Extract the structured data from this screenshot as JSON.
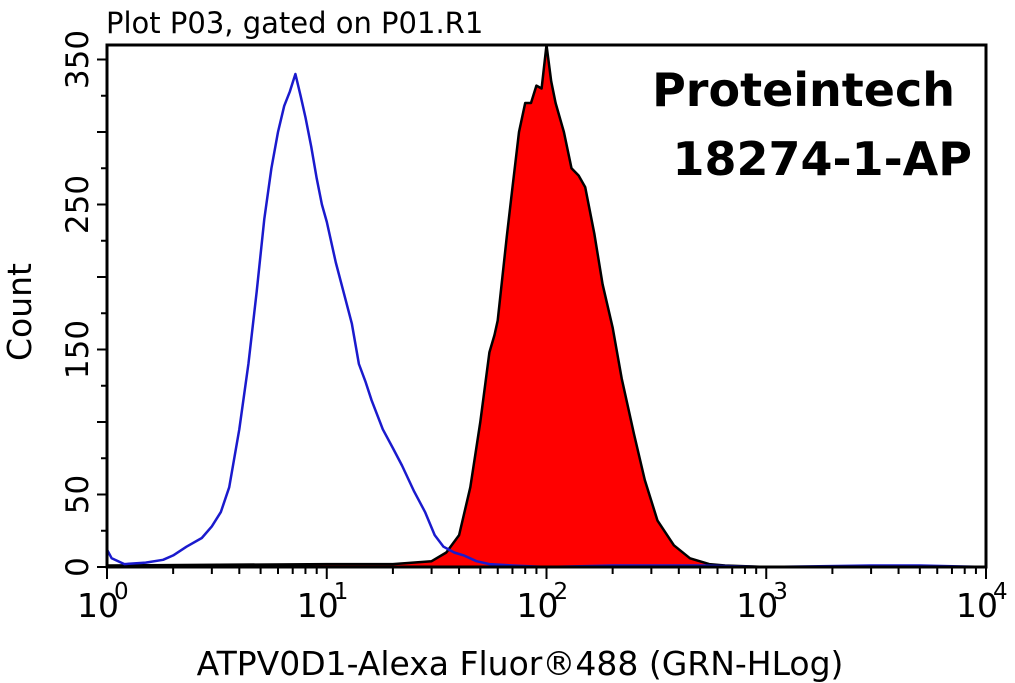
{
  "chart_data": {
    "type": "area",
    "title": "Plot P03, gated on P01.R1",
    "watermark": [
      "Proteintech",
      "18274-1-AP"
    ],
    "xlabel": "ATPV0D1-Alexa Fluor®488 (GRN-HLog)",
    "ylabel": "Count",
    "x_scale": "log",
    "xlim": [
      1,
      10000
    ],
    "ylim": [
      0,
      360
    ],
    "x_ticks": [
      {
        "base": "10",
        "exp": "0",
        "value": 1
      },
      {
        "base": "10",
        "exp": "1",
        "value": 10
      },
      {
        "base": "10",
        "exp": "2",
        "value": 100
      },
      {
        "base": "10",
        "exp": "3",
        "value": 1000
      },
      {
        "base": "10",
        "exp": "4",
        "value": 10000
      }
    ],
    "y_ticks": [
      "0",
      "50",
      "150",
      "250",
      "350"
    ],
    "y_tick_values": [
      0,
      50,
      150,
      250,
      350
    ],
    "grid": false,
    "legend": "none",
    "series": [
      {
        "style": "outline",
        "color": "#1a1acd",
        "x": [
          1,
          1.05,
          1.2,
          1.5,
          1.8,
          2.0,
          2.3,
          2.7,
          3.0,
          3.3,
          3.6,
          4.0,
          4.4,
          4.8,
          5.2,
          5.6,
          6.0,
          6.4,
          6.8,
          7.2,
          7.6,
          8.0,
          8.5,
          9.0,
          9.5,
          10,
          11,
          12,
          13,
          14,
          15,
          16,
          18,
          20,
          22,
          25,
          28,
          31,
          34,
          38,
          42,
          48,
          55,
          70,
          100,
          200,
          500,
          1000,
          3000,
          5000,
          10000
        ],
        "y": [
          12,
          6,
          2,
          3,
          5,
          8,
          14,
          20,
          28,
          38,
          55,
          95,
          140,
          190,
          240,
          275,
          300,
          318,
          328,
          340,
          325,
          310,
          290,
          268,
          250,
          238,
          210,
          188,
          168,
          140,
          128,
          115,
          95,
          82,
          70,
          52,
          38,
          22,
          14,
          10,
          8,
          4,
          2,
          1,
          0,
          1,
          1,
          0,
          1,
          1,
          0
        ]
      },
      {
        "style": "filled",
        "color": "#ff0000",
        "outline_color": "#000000",
        "x": [
          1,
          10,
          20,
          30,
          35,
          40,
          45,
          50,
          55,
          58,
          60,
          63,
          66,
          70,
          75,
          80,
          85,
          90,
          95,
          100,
          105,
          110,
          120,
          130,
          140,
          150,
          165,
          180,
          200,
          220,
          250,
          280,
          320,
          380,
          450,
          550,
          650,
          1000,
          3000,
          10000
        ],
        "y": [
          1,
          2,
          2,
          4,
          10,
          22,
          55,
          100,
          148,
          160,
          170,
          200,
          228,
          262,
          300,
          320,
          320,
          332,
          330,
          360,
          335,
          320,
          300,
          275,
          270,
          262,
          230,
          195,
          165,
          130,
          92,
          60,
          32,
          15,
          6,
          2,
          1,
          0,
          0,
          0
        ]
      }
    ]
  }
}
